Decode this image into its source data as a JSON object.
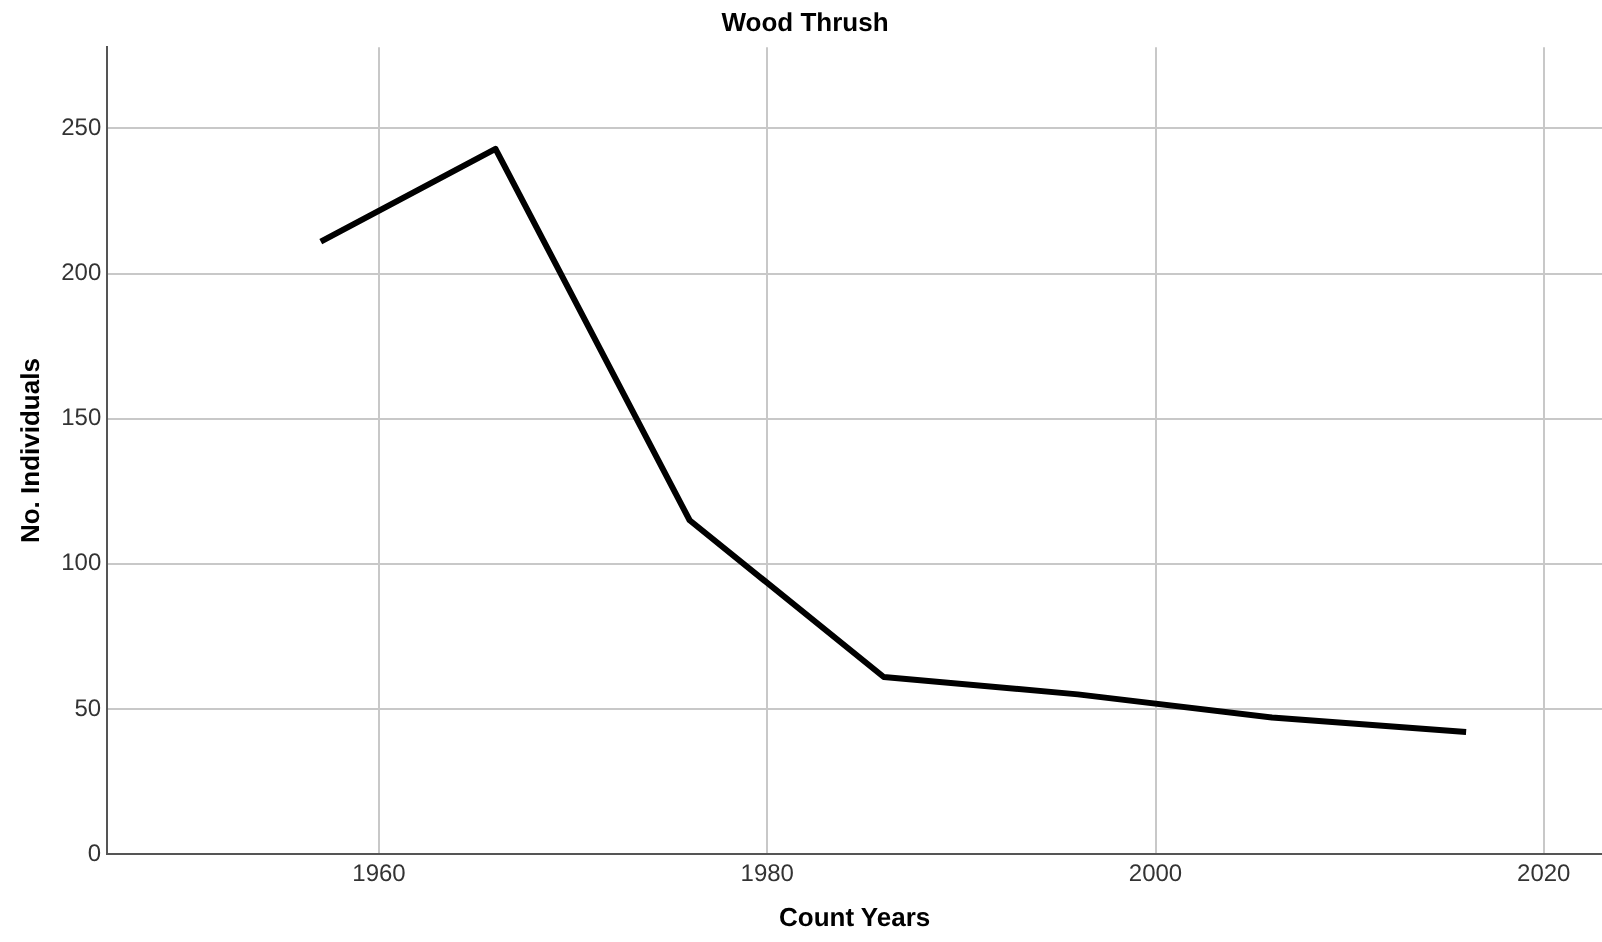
{
  "chart_data": {
    "type": "line",
    "title": "Wood Thrush",
    "xlabel": "Count Years",
    "ylabel": "No. Individuals",
    "x": [
      1957,
      1966,
      1976,
      1986,
      1996,
      2006,
      2016
    ],
    "series": [
      {
        "color": "#000000",
        "values": [
          211,
          243,
          115,
          61,
          55,
          47,
          42
        ]
      }
    ],
    "xlim": [
      1946,
      2023
    ],
    "xticks": [
      1960,
      1980,
      2000,
      2020
    ],
    "ylim": [
      0,
      278
    ],
    "yticks": [
      0,
      50,
      100,
      150,
      200,
      250
    ],
    "grid": true,
    "legend": false,
    "marker": "none",
    "line_style": "solid"
  }
}
